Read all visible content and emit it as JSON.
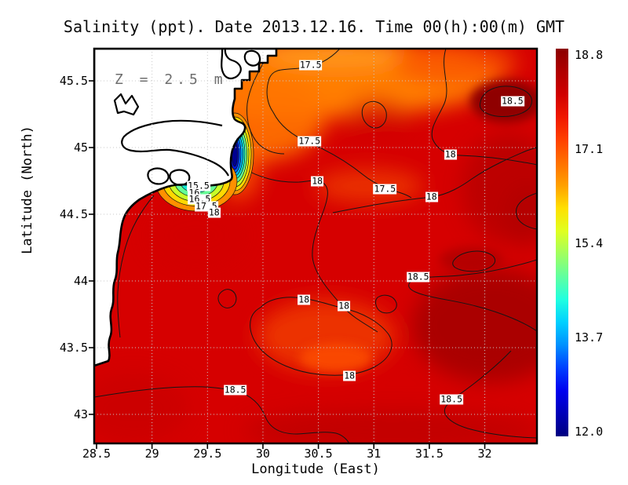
{
  "title": "Salinity (ppt). Date 2013.12.16. Time 00(h):00(m) GMT",
  "chart_data": {
    "type": "heatmap",
    "title": "Salinity (ppt). Date 2013.12.16. Time 00(h):00(m) GMT",
    "annotation": "Z = 2.5 m",
    "xlabel": "Longitude (East)",
    "ylabel": "Latitude (North)",
    "grid": true,
    "x_axis": {
      "min": 28.5,
      "max": 32.45,
      "ticks": [
        {
          "label": "28.5",
          "value": 28.5
        },
        {
          "label": "29",
          "value": 29
        },
        {
          "label": "29.5",
          "value": 29.5
        },
        {
          "label": "30",
          "value": 30
        },
        {
          "label": "30.5",
          "value": 30.5
        },
        {
          "label": "31",
          "value": 31
        },
        {
          "label": "31.5",
          "value": 31.5
        },
        {
          "label": "32",
          "value": 32
        }
      ]
    },
    "y_axis": {
      "min": 42.78,
      "max": 45.74,
      "ticks": [
        {
          "label": "45.5",
          "value": 45.5
        },
        {
          "label": "45",
          "value": 45
        },
        {
          "label": "44.5",
          "value": 44.5
        },
        {
          "label": "44",
          "value": 44
        },
        {
          "label": "43.5",
          "value": 43.5
        },
        {
          "label": "43",
          "value": 43
        }
      ]
    },
    "colorbar": {
      "min": 12.0,
      "max": 18.8,
      "labels": [
        {
          "label": "18.8",
          "value": 18.8
        },
        {
          "label": "17.1",
          "value": 17.1
        },
        {
          "label": "15.4",
          "value": 15.4
        },
        {
          "label": "13.7",
          "value": 13.7
        },
        {
          "label": "12.0",
          "value": 12.0
        }
      ],
      "palette_bottom_to_top": [
        "#000080",
        "#0000b8",
        "#0000f0",
        "#0040ff",
        "#0090ff",
        "#00d0ff",
        "#20ffe0",
        "#60ffa0",
        "#a0ff60",
        "#e0ff20",
        "#ffe000",
        "#ffa000",
        "#ff7000",
        "#ff4000",
        "#f01800",
        "#d00000",
        "#b00000",
        "#8b0000"
      ]
    },
    "contour_labels": [
      {
        "text": "17.5",
        "lon": 30.43,
        "lat": 45.62
      },
      {
        "text": "18.5",
        "lon": 32.25,
        "lat": 45.35
      },
      {
        "text": "17.5",
        "lon": 30.42,
        "lat": 45.05
      },
      {
        "text": "18",
        "lon": 31.69,
        "lat": 44.95
      },
      {
        "text": "18",
        "lon": 30.49,
        "lat": 44.75
      },
      {
        "text": "17.5",
        "lon": 31.1,
        "lat": 44.69
      },
      {
        "text": "18",
        "lon": 31.52,
        "lat": 44.63
      },
      {
        "text": "18.5",
        "lon": 31.4,
        "lat": 44.03
      },
      {
        "text": "18",
        "lon": 30.37,
        "lat": 43.86
      },
      {
        "text": "18",
        "lon": 30.73,
        "lat": 43.81
      },
      {
        "text": "18",
        "lon": 30.78,
        "lat": 43.29
      },
      {
        "text": "18.5",
        "lon": 29.75,
        "lat": 43.18
      },
      {
        "text": "18.5",
        "lon": 31.7,
        "lat": 43.11
      },
      {
        "text": "15.5",
        "lon": 29.42,
        "lat": 44.71
      },
      {
        "text": "16",
        "lon": 29.38,
        "lat": 44.66
      },
      {
        "text": "16.5",
        "lon": 29.43,
        "lat": 44.61
      },
      {
        "text": "17.5",
        "lon": 29.49,
        "lat": 44.56
      },
      {
        "text": "18",
        "lon": 29.56,
        "lat": 44.51
      }
    ],
    "land_color": "#ffffff",
    "water_low_color": "#000080",
    "water_high_color": "#8b0000"
  }
}
